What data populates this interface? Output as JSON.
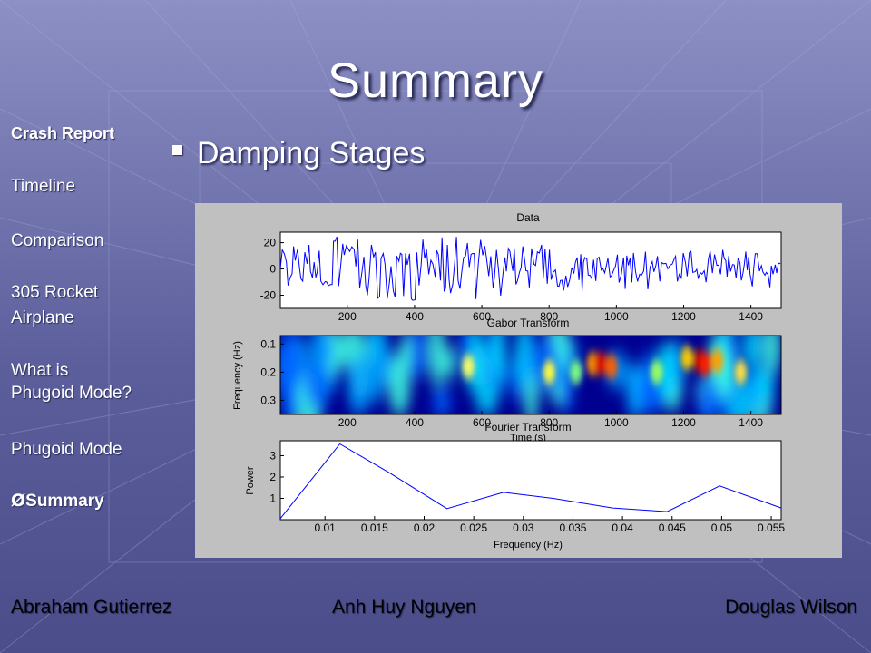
{
  "slide": {
    "title": "Summary",
    "bullet": "Damping Stages"
  },
  "sidebar": {
    "items": [
      {
        "label": "Crash Report"
      },
      {
        "label": "Timeline"
      },
      {
        "label": "Comparison"
      },
      {
        "label": "305 Rocket"
      },
      {
        "label": "Airplane"
      },
      {
        "label": "What is"
      },
      {
        "label": "Phugoid Mode?"
      },
      {
        "label": "Phugoid Mode"
      },
      {
        "label": "Summary",
        "marker": "Ø"
      }
    ]
  },
  "footer": {
    "author1": "Abraham Gutierrez",
    "author2": "Anh Huy Nguyen",
    "author3": "Douglas Wilson"
  },
  "colors": {
    "text": "#ffffff",
    "plot_line": "#0000ff",
    "figure_bg": "#c0c0c0"
  },
  "chart_data": [
    {
      "type": "line",
      "title": "Data",
      "xlabel": "",
      "ylabel": "",
      "xlim": [
        1,
        1490
      ],
      "ylim": [
        -30,
        28
      ],
      "xticks": [
        200,
        400,
        600,
        800,
        1000,
        1200,
        1400
      ],
      "yticks": [
        20,
        0,
        -20
      ]
    },
    {
      "type": "heatmap",
      "title": "Gabor Transform",
      "xlabel": "Time (s)",
      "ylabel": "Frequency (Hz)",
      "xticks": [
        200,
        400,
        600,
        800,
        1000,
        1200,
        1400
      ],
      "yticks": [
        0.1,
        0.2,
        0.3
      ]
    },
    {
      "type": "line",
      "title": "Fourier Transform",
      "xlabel": "Frequency (Hz)",
      "ylabel": "Power",
      "xlim": [
        0.0055,
        0.056
      ],
      "ylim": [
        0,
        3.7
      ],
      "xticks": [
        0.01,
        0.015,
        0.02,
        0.025,
        0.03,
        0.035,
        0.04,
        0.045,
        0.05,
        0.055
      ],
      "yticks": [
        1,
        2,
        3
      ],
      "x": [
        0.0055,
        0.0115,
        0.0165,
        0.0223,
        0.028,
        0.033,
        0.039,
        0.0445,
        0.0498,
        0.056
      ],
      "y": [
        0.05,
        3.55,
        2.2,
        0.52,
        1.28,
        1.0,
        0.55,
        0.38,
        1.58,
        0.55
      ]
    }
  ]
}
